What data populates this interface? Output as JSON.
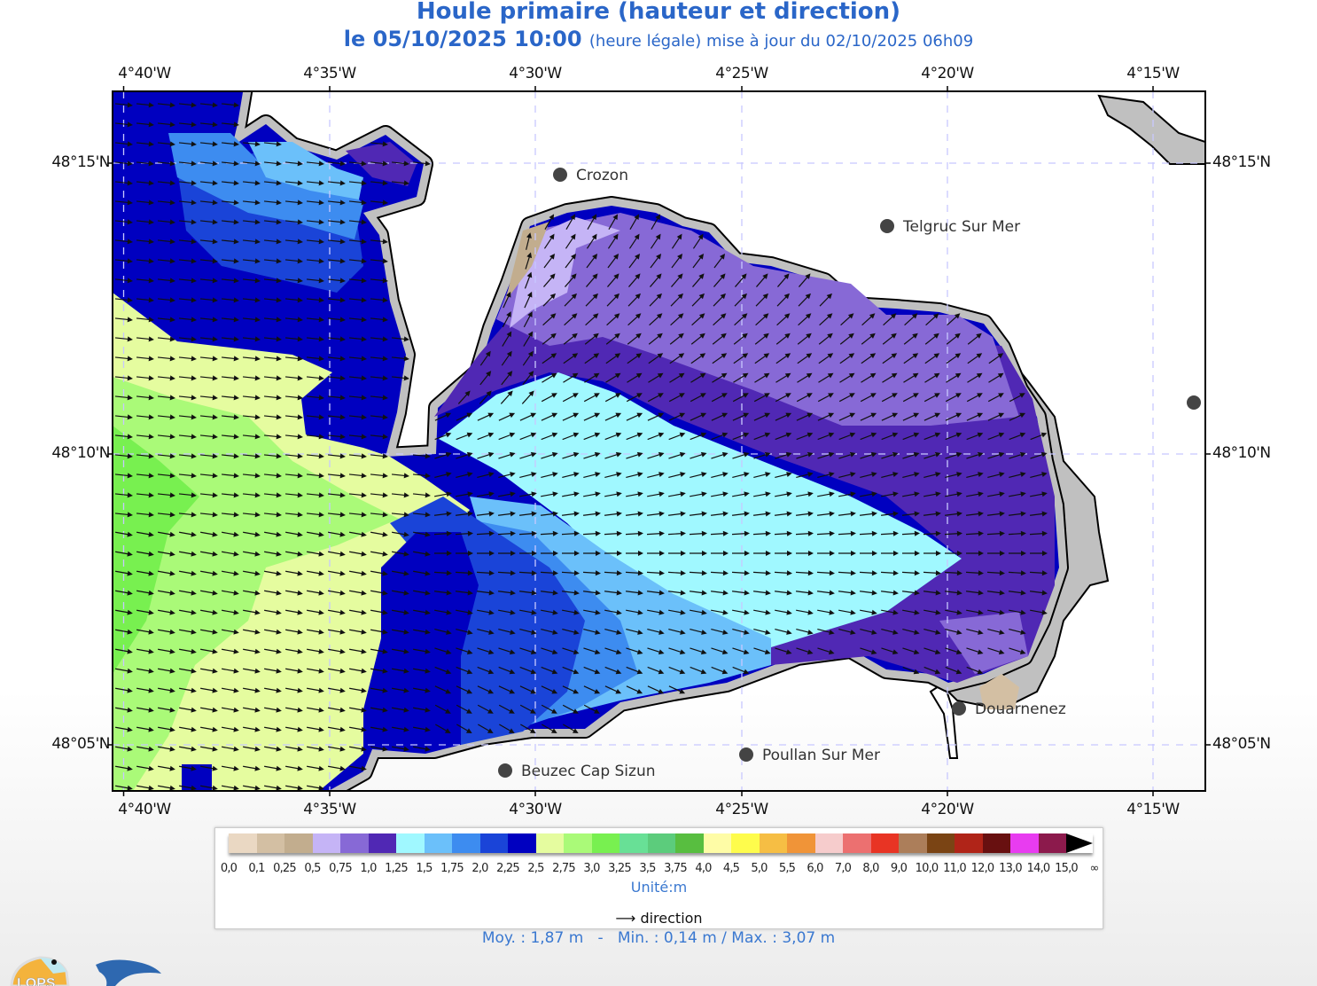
{
  "header": {
    "title": "Houle primaire (hauteur et direction)",
    "date_line": "le 05/10/2025 10:00",
    "date_sub": "(heure légale) mise à jour du 02/10/2025 06h09"
  },
  "map": {
    "lon_labels": [
      "4°40'W",
      "4°35'W",
      "4°30'W",
      "4°25'W",
      "4°20'W",
      "4°15'W"
    ],
    "lat_labels": [
      "48°15'N",
      "48°10'N",
      "48°05'N"
    ],
    "cities": [
      {
        "name": "Crozon"
      },
      {
        "name": "Telgruc Sur Mer"
      },
      {
        "name": "Douarnenez"
      },
      {
        "name": "Poullan Sur Mer"
      },
      {
        "name": "Beuzec Cap Sizun"
      },
      {
        "name": ""
      }
    ],
    "land_color": "#c0c0c0",
    "arrow_color": "#111111"
  },
  "legend": {
    "colors": [
      "#ead8c3",
      "#d3bfa3",
      "#c2ad8e",
      "#c5b4f6",
      "#8769d6",
      "#5028b4",
      "#a0f8ff",
      "#6bc0fa",
      "#3d8cf0",
      "#1a44d8",
      "#0000c0",
      "#e5fc9f",
      "#aafa78",
      "#78f050",
      "#68e096",
      "#5ccc7c",
      "#58be40",
      "#fefca6",
      "#fefc4c",
      "#f6be44",
      "#f09438",
      "#f6cccc",
      "#ec7070",
      "#e83424",
      "#ac7e5a",
      "#7a4414",
      "#b02418",
      "#681010",
      "#e83cf0",
      "#8c1a4c"
    ],
    "labels": [
      "0,0",
      "0,1",
      "0,25",
      "0,5",
      "0,75",
      "1,0",
      "1,25",
      "1,5",
      "1,75",
      "2,0",
      "2,25",
      "2,5",
      "2,75",
      "3,0",
      "3,25",
      "3,5",
      "3,75",
      "4,0",
      "4,5",
      "5,0",
      "5,5",
      "6,0",
      "7,0",
      "8,0",
      "9,0",
      "10,0",
      "11,0",
      "12,0",
      "13,0",
      "14,0",
      "15,0",
      "∞"
    ],
    "unit": "Unité:m",
    "direction_label": "direction"
  },
  "stats": {
    "text": "Moy. : 1,87 m   -   Min. : 0,14 m / Max. : 3,07 m"
  },
  "logos": [
    "LOPS"
  ]
}
